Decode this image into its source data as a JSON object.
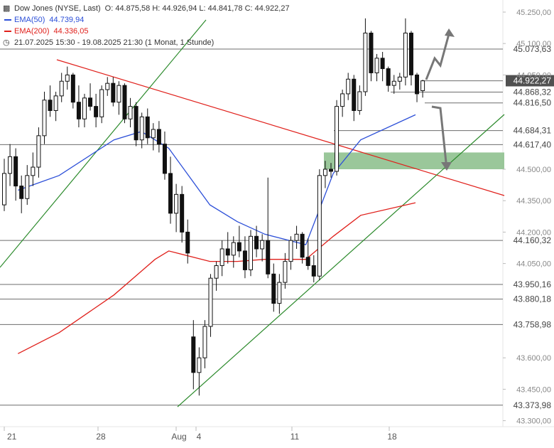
{
  "legend": {
    "instrument": "Dow Jones (NYSE, Last)",
    "ohlc": "O: 44.875,58  H: 44.926,94  L: 44.841,78  C: 44.922,27",
    "ema50_label": "EMA(50)",
    "ema50_value": "44.739,94",
    "ema200_label": "EMA(200)",
    "ema200_value": "44.336,05",
    "period": "21.07.2025 15:30 - 19.08.2025 21:30   (1 Monat, 1 Stunde)",
    "ema50_color": "#2c4fd8",
    "ema200_color": "#e0201b"
  },
  "chart_data": {
    "type": "candlestick",
    "y_ticks": [
      "45.250,00",
      "45.100,00",
      "44.950,00",
      "44.500,00",
      "44.350,00",
      "44.200,00",
      "44.050,00",
      "43.600,00",
      "43.450,00",
      "43.300,00"
    ],
    "y_tick_values": [
      45250,
      45100,
      44950,
      44500,
      44350,
      44200,
      44050,
      43600,
      43450,
      43300
    ],
    "ylim": [
      43250,
      45300
    ],
    "x_ticks": [
      "21",
      "28",
      "Aug",
      "4",
      "11",
      "18"
    ],
    "price_levels": [
      45073.63,
      44922.27,
      44868.32,
      44816.5,
      44684.31,
      44617.4,
      44160.32,
      43950.16,
      43880.18,
      43758.98,
      43373.98
    ],
    "level_labels": [
      "45.073,63",
      "44.922,27",
      "44.868,32",
      "44.816,50",
      "44.684,31",
      "44.617,40",
      "44.160,32",
      "43.950,16",
      "43.880,18",
      "43.758,98",
      "43.373,98"
    ],
    "highlight_level": "44.922,27",
    "support_zone": [
      44500,
      44580
    ],
    "series": [
      {
        "name": "EMA(50)",
        "color": "#2c4fd8",
        "x": [
          "2025-07-21",
          "2025-07-24",
          "2025-07-28",
          "2025-07-30",
          "2025-08-01",
          "2025-08-04",
          "2025-08-06",
          "2025-08-08",
          "2025-08-11",
          "2025-08-13",
          "2025-08-15",
          "2025-08-19"
        ],
        "values": [
          44400,
          44470,
          44640,
          44680,
          44600,
          44330,
          44250,
          44190,
          44140,
          44480,
          44640,
          44760
        ]
      },
      {
        "name": "EMA(200)",
        "color": "#e0201b",
        "x": [
          "2025-07-21",
          "2025-07-24",
          "2025-07-28",
          "2025-07-31",
          "2025-08-01",
          "2025-08-04",
          "2025-08-06",
          "2025-08-08",
          "2025-08-11",
          "2025-08-13",
          "2025-08-15",
          "2025-08-19"
        ],
        "values": [
          43620,
          43720,
          43900,
          44070,
          44110,
          44060,
          44060,
          44070,
          44070,
          44180,
          44280,
          44340
        ]
      }
    ],
    "candles": [
      [
        44330,
        44550,
        44300,
        44480
      ],
      [
        44480,
        44620,
        44420,
        44560
      ],
      [
        44560,
        44600,
        44350,
        44420
      ],
      [
        44420,
        44470,
        44290,
        44360
      ],
      [
        44360,
        44520,
        44330,
        44470
      ],
      [
        44470,
        44580,
        44420,
        44510
      ],
      [
        44510,
        44700,
        44460,
        44660
      ],
      [
        44660,
        44870,
        44620,
        44830
      ],
      [
        44830,
        44900,
        44750,
        44780
      ],
      [
        44780,
        44870,
        44730,
        44850
      ],
      [
        44850,
        44960,
        44820,
        44920
      ],
      [
        44920,
        44990,
        44880,
        44950
      ],
      [
        44950,
        44960,
        44790,
        44820
      ],
      [
        44820,
        44900,
        44700,
        44740
      ],
      [
        44740,
        44860,
        44700,
        44840
      ],
      [
        44840,
        44910,
        44780,
        44800
      ],
      [
        44800,
        44860,
        44700,
        44750
      ],
      [
        44750,
        44900,
        44720,
        44880
      ],
      [
        44880,
        44940,
        44850,
        44910
      ],
      [
        44910,
        44940,
        44800,
        44820
      ],
      [
        44820,
        44920,
        44760,
        44900
      ],
      [
        44900,
        44910,
        44720,
        44740
      ],
      [
        44740,
        44840,
        44700,
        44800
      ],
      [
        44800,
        44820,
        44610,
        44640
      ],
      [
        44640,
        44770,
        44600,
        44750
      ],
      [
        44750,
        44790,
        44620,
        44650
      ],
      [
        44650,
        44720,
        44590,
        44690
      ],
      [
        44690,
        44730,
        44580,
        44620
      ],
      [
        44620,
        44680,
        44450,
        44480
      ],
      [
        44480,
        44560,
        44240,
        44290
      ],
      [
        44290,
        44430,
        44200,
        44380
      ],
      [
        44380,
        44420,
        44150,
        44200
      ],
      [
        44200,
        44260,
        44050,
        44100
      ],
      [
        43700,
        43780,
        43450,
        43530
      ],
      [
        43530,
        43650,
        43420,
        43600
      ],
      [
        43600,
        43780,
        43550,
        43750
      ],
      [
        43750,
        44000,
        43700,
        43980
      ],
      [
        43980,
        44060,
        43920,
        44040
      ],
      [
        44040,
        44160,
        43990,
        44120
      ],
      [
        44120,
        44200,
        44050,
        44090
      ],
      [
        44090,
        44180,
        44030,
        44150
      ],
      [
        44150,
        44230,
        44080,
        44110
      ],
      [
        44110,
        44180,
        43980,
        44020
      ],
      [
        44020,
        44210,
        43990,
        44180
      ],
      [
        44180,
        44230,
        44080,
        44120
      ],
      [
        44120,
        44190,
        44060,
        44160
      ],
      [
        44160,
        44460,
        43980,
        44000
      ],
      [
        44000,
        44050,
        43820,
        43860
      ],
      [
        43860,
        44000,
        43810,
        43960
      ],
      [
        43960,
        44100,
        43930,
        44060
      ],
      [
        44060,
        44180,
        44020,
        44160
      ],
      [
        44160,
        44230,
        44120,
        44190
      ],
      [
        44190,
        44200,
        44050,
        44080
      ],
      [
        44080,
        44170,
        44020,
        44040
      ],
      [
        44040,
        44090,
        43960,
        43990
      ],
      [
        43990,
        44500,
        43970,
        44470
      ],
      [
        44470,
        44540,
        44410,
        44500
      ],
      [
        44500,
        44530,
        44460,
        44490
      ],
      [
        44490,
        44830,
        44470,
        44800
      ],
      [
        44800,
        44880,
        44750,
        44860
      ],
      [
        44860,
        44960,
        44830,
        44930
      ],
      [
        44930,
        44950,
        44730,
        44780
      ],
      [
        44780,
        44900,
        44760,
        44870
      ],
      [
        44870,
        45220,
        44850,
        45150
      ],
      [
        45150,
        45160,
        44920,
        44960
      ],
      [
        44960,
        45050,
        44920,
        45030
      ],
      [
        45030,
        45060,
        44920,
        44980
      ],
      [
        44980,
        44990,
        44870,
        44900
      ],
      [
        44900,
        44950,
        44860,
        44920
      ],
      [
        44920,
        44960,
        44880,
        44940
      ],
      [
        44940,
        45220,
        44900,
        45150
      ],
      [
        45150,
        45160,
        44900,
        44950
      ],
      [
        44950,
        44960,
        44820,
        44860
      ],
      [
        44875,
        44927,
        44842,
        44922
      ]
    ]
  }
}
